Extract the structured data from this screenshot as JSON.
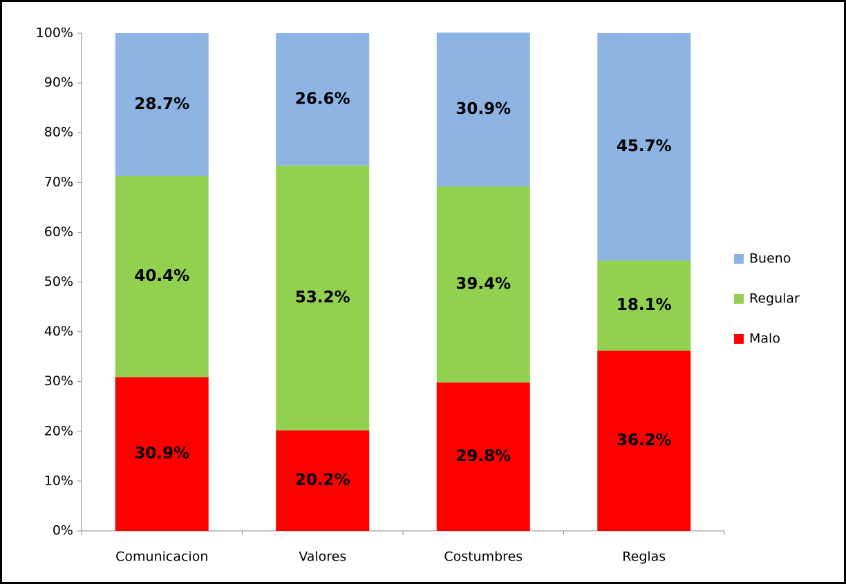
{
  "chart_data": {
    "type": "stacked_bar",
    "categories": [
      "Comunicacion",
      "Valores",
      "Costumbres",
      "Reglas"
    ],
    "series": [
      {
        "name": "Malo",
        "color": "#ff0000",
        "values": [
          30.9,
          20.2,
          29.8,
          36.2
        ],
        "value_labels": [
          "30.9%",
          "20.2%",
          "29.8%",
          "36.2%"
        ]
      },
      {
        "name": "Regular",
        "color": "#92d050",
        "values": [
          40.4,
          53.2,
          39.4,
          18.1
        ],
        "value_labels": [
          "40.4%",
          "53.2%",
          "39.4%",
          "18.1%"
        ]
      },
      {
        "name": "Bueno",
        "color": "#8db3e2",
        "values": [
          28.7,
          26.6,
          30.9,
          45.7
        ],
        "value_labels": [
          "28.7%",
          "26.6%",
          "30.9%",
          "45.7%"
        ]
      }
    ],
    "ylim": [
      0,
      100
    ],
    "yticks": [
      {
        "value": 0,
        "label": "0%"
      },
      {
        "value": 10,
        "label": "10%"
      },
      {
        "value": 20,
        "label": "20%"
      },
      {
        "value": 30,
        "label": "30%"
      },
      {
        "value": 40,
        "label": "40%"
      },
      {
        "value": 50,
        "label": "50%"
      },
      {
        "value": 60,
        "label": "60%"
      },
      {
        "value": 70,
        "label": "70%"
      },
      {
        "value": 80,
        "label": "80%"
      },
      {
        "value": 90,
        "label": "90%"
      },
      {
        "value": 100,
        "label": "100%"
      }
    ],
    "legend": "right",
    "grid": false
  }
}
